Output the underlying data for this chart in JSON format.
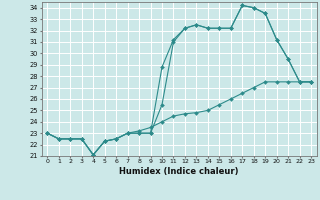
{
  "xlabel": "Humidex (Indice chaleur)",
  "ylabel": "",
  "bg_color": "#cce8e8",
  "line_color": "#2d8b8b",
  "grid_color": "#ffffff",
  "xlim": [
    -0.5,
    23.5
  ],
  "ylim": [
    21,
    34.5
  ],
  "xticks": [
    0,
    1,
    2,
    3,
    4,
    5,
    6,
    7,
    8,
    9,
    10,
    11,
    12,
    13,
    14,
    15,
    16,
    17,
    18,
    19,
    20,
    21,
    22,
    23
  ],
  "yticks": [
    21,
    22,
    23,
    24,
    25,
    26,
    27,
    28,
    29,
    30,
    31,
    32,
    33,
    34
  ],
  "line1_x": [
    0,
    1,
    2,
    3,
    4,
    5,
    6,
    7,
    8,
    9,
    10,
    11,
    12,
    13,
    14,
    15,
    16,
    17,
    18,
    19,
    20,
    21,
    22,
    23
  ],
  "line1_y": [
    23,
    22.5,
    22.5,
    22.5,
    21.1,
    22.3,
    22.5,
    23.0,
    23.0,
    23.0,
    25.5,
    31.0,
    32.2,
    32.5,
    32.2,
    32.2,
    32.2,
    34.2,
    34.0,
    33.5,
    31.2,
    29.5,
    27.5,
    27.5
  ],
  "line2_x": [
    0,
    1,
    2,
    3,
    4,
    5,
    6,
    7,
    8,
    9,
    10,
    11,
    12,
    13,
    14,
    15,
    16,
    17,
    18,
    19,
    20,
    21,
    22,
    23
  ],
  "line2_y": [
    23,
    22.5,
    22.5,
    22.5,
    21.1,
    22.3,
    22.5,
    23.0,
    23.0,
    23.0,
    28.8,
    31.2,
    32.2,
    32.5,
    32.2,
    32.2,
    32.2,
    34.2,
    34.0,
    33.5,
    31.2,
    29.5,
    27.5,
    27.5
  ],
  "line3_x": [
    0,
    1,
    2,
    3,
    4,
    5,
    6,
    7,
    8,
    9,
    10,
    11,
    12,
    13,
    14,
    15,
    16,
    17,
    18,
    19,
    20,
    21,
    22,
    23
  ],
  "line3_y": [
    23.0,
    22.5,
    22.5,
    22.5,
    21.1,
    22.3,
    22.5,
    23.0,
    23.2,
    23.5,
    24.0,
    24.5,
    24.7,
    24.8,
    25.0,
    25.5,
    26.0,
    26.5,
    27.0,
    27.5,
    27.5,
    27.5,
    27.5,
    27.5
  ]
}
